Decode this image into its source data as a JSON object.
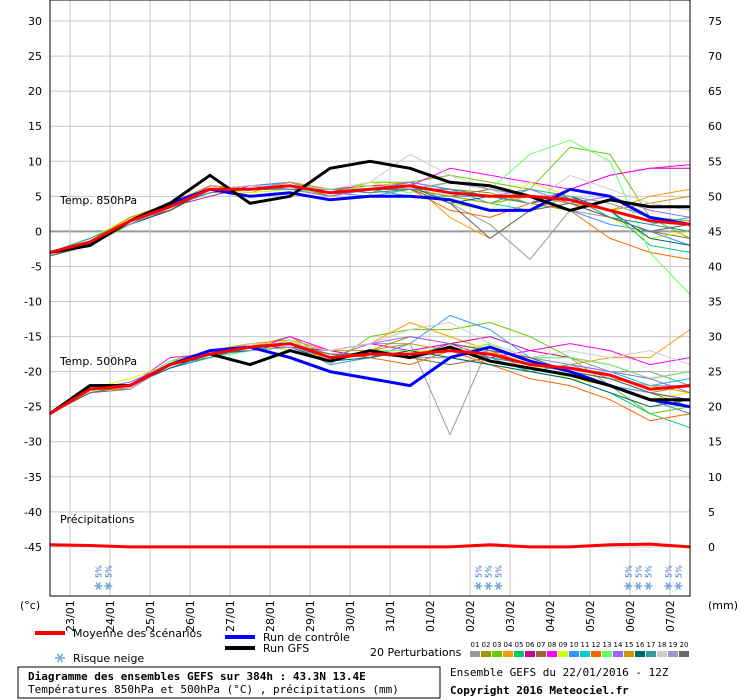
{
  "chart_data": {
    "type": "line",
    "title": "Diagramme des ensembles GEFS sur 384h : 43.3N 13.4E",
    "subtitle": "Températures 850hPa et 500hPa (°C) , précipitations (mm)",
    "run_info": "Ensemble GEFS du 22/01/2016 - 12Z",
    "copyright": "Copyright 2016 Meteociel.fr",
    "annotations": [
      "Temp. 850hPa",
      "Temp. 500hPa",
      "Précipitations"
    ],
    "y_unit": "(°c)",
    "y2_unit": "(mm)",
    "perturbations_label": "20 Perturbations",
    "snow_risk": {
      "label": "Risque neige",
      "marks": [
        {
          "x": 29,
          "label": "5%"
        },
        {
          "x": 35,
          "label": "5%"
        },
        {
          "x": 257,
          "label": "5%"
        },
        {
          "x": 263,
          "label": "5%"
        },
        {
          "x": 269,
          "label": "5%"
        },
        {
          "x": 347,
          "label": "5%"
        },
        {
          "x": 353,
          "label": "5%"
        },
        {
          "x": 359,
          "label": "5%"
        },
        {
          "x": 371,
          "label": "5%"
        },
        {
          "x": 377,
          "label": "5%"
        }
      ]
    },
    "x": [
      0,
      24,
      48,
      72,
      96,
      120,
      144,
      168,
      192,
      216,
      240,
      264,
      288,
      312,
      336,
      360,
      384
    ],
    "xlim": [
      0,
      384
    ],
    "xticks": [
      {
        "value": 12,
        "label": "23/01"
      },
      {
        "value": 36,
        "label": "24/01"
      },
      {
        "value": 60,
        "label": "25/01"
      },
      {
        "value": 84,
        "label": "26/01"
      },
      {
        "value": 108,
        "label": "27/01"
      },
      {
        "value": 132,
        "label": "28/01"
      },
      {
        "value": 156,
        "label": "29/01"
      },
      {
        "value": 180,
        "label": "30/01"
      },
      {
        "value": 204,
        "label": "31/01"
      },
      {
        "value": 228,
        "label": "01/02"
      },
      {
        "value": 252,
        "label": "02/02"
      },
      {
        "value": 276,
        "label": "03/02"
      },
      {
        "value": 300,
        "label": "04/02"
      },
      {
        "value": 324,
        "label": "05/02"
      },
      {
        "value": 348,
        "label": "06/02"
      },
      {
        "value": 372,
        "label": "07/02"
      }
    ],
    "ylim": [
      -52,
      33
    ],
    "yticks": [
      -45,
      -40,
      -35,
      -30,
      -25,
      -20,
      -15,
      -10,
      -5,
      0,
      5,
      10,
      15,
      20,
      25,
      30
    ],
    "y2lim": [
      -7,
      78
    ],
    "y2ticks": [
      0,
      5,
      10,
      15,
      20,
      25,
      30,
      35,
      40,
      45,
      50,
      55,
      60,
      65,
      70,
      75
    ],
    "grid": true,
    "series": [
      {
        "name": "01",
        "color": "#999999",
        "values": [
          -3,
          -1.5,
          1,
          3,
          6,
          6.5,
          7,
          6,
          5.5,
          7,
          4,
          1,
          -4,
          3,
          2,
          0,
          1
        ],
        "values_500": [
          -26,
          -22.5,
          -22,
          -19,
          -17.5,
          -16,
          -16,
          -17,
          -16,
          -16,
          -29,
          -16,
          -18,
          -18,
          -20,
          -20,
          -22
        ]
      },
      {
        "name": "02",
        "color": "#999900",
        "values": [
          -3,
          -1,
          1.5,
          3.5,
          5.5,
          6,
          6.5,
          5,
          6,
          6,
          6,
          5.5,
          4,
          5,
          4,
          2,
          1.5
        ],
        "values_500": [
          -26,
          -22,
          -22.5,
          -19,
          -18,
          -16.5,
          -15,
          -18,
          -17,
          -15,
          -16,
          -17,
          -19,
          -20,
          -21,
          -23,
          -22
        ]
      },
      {
        "name": "03",
        "color": "#66cc00",
        "values": [
          -3.5,
          -2,
          1,
          4,
          6.5,
          6,
          6,
          5.5,
          7,
          7,
          8,
          7,
          6,
          12,
          11,
          2,
          -1
        ],
        "values_500": [
          -26,
          -23,
          -22,
          -18.5,
          -17,
          -17,
          -16,
          -19,
          -15,
          -14,
          -14,
          -13,
          -15,
          -18,
          -22,
          -26,
          -25
        ]
      },
      {
        "name": "04",
        "color": "#ff9900",
        "values": [
          -3,
          -1.5,
          2,
          3,
          6,
          5.5,
          7,
          6,
          6.5,
          7,
          2,
          -1,
          3,
          4,
          3,
          5,
          6
        ],
        "values_500": [
          -26,
          -22.5,
          -21.5,
          -19,
          -17,
          -16,
          -15.5,
          -17,
          -16,
          -13,
          -15,
          -17,
          -20,
          -19,
          -18,
          -18,
          -14
        ]
      },
      {
        "name": "05",
        "color": "#00cc66",
        "values": [
          -3,
          -1,
          1.5,
          4,
          6,
          6,
          6,
          5,
          6,
          5,
          5,
          4,
          6,
          5,
          3,
          -2,
          -3
        ],
        "values_500": [
          -26,
          -22,
          -22,
          -19.5,
          -18,
          -17,
          -16,
          -18,
          -17,
          -18,
          -18,
          -19,
          -20,
          -21,
          -23,
          -26,
          -28
        ]
      },
      {
        "name": "06",
        "color": "#cc0099",
        "values": [
          -3,
          -1.5,
          1,
          3.5,
          5,
          6.5,
          7,
          5.5,
          6,
          7,
          6,
          5,
          4,
          6,
          8,
          9,
          9
        ],
        "values_500": [
          -26,
          -22.5,
          -22,
          -19,
          -17.5,
          -16.5,
          -16.5,
          -17,
          -18,
          -17,
          -16,
          -15,
          -17,
          -18,
          -19,
          -21,
          -20
        ]
      },
      {
        "name": "07",
        "color": "#996633",
        "values": [
          -3.5,
          -2,
          1.5,
          3.5,
          6,
          6,
          6.5,
          6,
          5.5,
          6,
          5,
          6,
          5,
          4,
          2,
          0,
          -1
        ],
        "values_500": [
          -26,
          -23,
          -22.5,
          -19,
          -18,
          -16,
          -16,
          -18.5,
          -17,
          -18,
          -19,
          -18,
          -19,
          -20,
          -21,
          -23,
          -25
        ]
      },
      {
        "name": "08",
        "color": "#ff00ff",
        "values": [
          -3,
          -1.5,
          1.5,
          3,
          6.5,
          6,
          6,
          6,
          6.5,
          6.5,
          9,
          8,
          7,
          6,
          8,
          9,
          9.5
        ],
        "values_500": [
          -26,
          -22,
          -22,
          -18,
          -17.5,
          -17,
          -15,
          -17,
          -16,
          -17,
          -16,
          -18,
          -17,
          -16,
          -17,
          -19,
          -18
        ]
      },
      {
        "name": "09",
        "color": "#ccff00",
        "values": [
          -3,
          -1,
          2,
          4,
          6,
          5.5,
          6,
          5,
          7,
          6,
          4,
          3,
          7,
          5,
          2,
          -1,
          0
        ],
        "values_500": [
          -26,
          -22.5,
          -21,
          -19,
          -17,
          -16,
          -17,
          -18,
          -17,
          -17,
          -17,
          -16,
          -19,
          -21,
          -22,
          -24,
          -23
        ]
      },
      {
        "name": "10",
        "color": "#3399ff",
        "values": [
          -3,
          -1.5,
          1,
          3.5,
          6,
          6.5,
          7,
          5.5,
          5,
          6,
          5,
          5,
          4,
          3,
          1,
          0,
          -2
        ],
        "values_500": [
          -26,
          -22,
          -22,
          -19.5,
          -18,
          -16.5,
          -16,
          -19,
          -18,
          -16,
          -12,
          -14,
          -18,
          -20,
          -22,
          -23,
          -24
        ]
      },
      {
        "name": "11",
        "color": "#00cccc",
        "values": [
          -3,
          -2,
          1.5,
          4,
          5.5,
          6,
          6.5,
          6,
          6,
          7,
          6,
          4,
          3,
          5,
          2,
          1,
          2
        ],
        "values_500": [
          -26,
          -23,
          -22,
          -19,
          -17,
          -17,
          -16.5,
          -18,
          -17.5,
          -18,
          -17,
          -18,
          -20,
          -19,
          -20,
          -22,
          -21
        ]
      },
      {
        "name": "12",
        "color": "#ff6600",
        "values": [
          -3.5,
          -1.5,
          1,
          3,
          6,
          6,
          7,
          5,
          6,
          6,
          3,
          2,
          4,
          3,
          -1,
          -3,
          -4
        ],
        "values_500": [
          -26,
          -22.5,
          -22.5,
          -19,
          -17.5,
          -16,
          -16,
          -17.5,
          -18,
          -19,
          -17,
          -19,
          -21,
          -22,
          -24,
          -27,
          -26
        ]
      },
      {
        "name": "13",
        "color": "#66ff66",
        "values": [
          -3,
          -1,
          1.5,
          3.5,
          6,
          6,
          6,
          5.5,
          6.5,
          5.5,
          7,
          6,
          11,
          13,
          10,
          -3,
          -9
        ],
        "values_500": [
          -26,
          -22,
          -22,
          -18.5,
          -18,
          -17,
          -15.5,
          -18,
          -17,
          -17,
          -18,
          -16,
          -18,
          -18,
          -19,
          -21,
          -20
        ]
      },
      {
        "name": "14",
        "color": "#9966ff",
        "values": [
          -3,
          -1.5,
          1.5,
          3.5,
          6,
          6.5,
          6,
          5,
          6,
          7,
          6,
          5,
          6,
          4,
          5,
          3,
          2
        ],
        "values_500": [
          -26,
          -22.5,
          -21.5,
          -19,
          -17.5,
          -16.5,
          -16,
          -18,
          -16,
          -15,
          -16,
          -17,
          -18,
          -19,
          -20,
          -21,
          -23
        ]
      },
      {
        "name": "15",
        "color": "#cc9900",
        "values": [
          -3,
          -1.5,
          2,
          4,
          6.5,
          6,
          7,
          6,
          6,
          6,
          5,
          4,
          5,
          4,
          3,
          4,
          5
        ],
        "values_500": [
          -26,
          -23,
          -22,
          -19,
          -17,
          -16,
          -16,
          -17,
          -17,
          -16,
          -17,
          -18,
          -19,
          -20,
          -21,
          -22,
          -23
        ]
      },
      {
        "name": "16",
        "color": "#006666",
        "values": [
          -3,
          -1.5,
          1,
          3,
          6,
          6,
          6.5,
          5.5,
          6,
          6.5,
          4,
          5,
          4,
          5,
          3,
          -1,
          -2
        ],
        "values_500": [
          -26,
          -22,
          -22,
          -19.5,
          -17.5,
          -17,
          -16.5,
          -18.5,
          -18,
          -17,
          -18,
          -19,
          -20,
          -21,
          -23,
          -25,
          -24
        ]
      },
      {
        "name": "17",
        "color": "#339999",
        "values": [
          -3,
          -1,
          1.5,
          3.5,
          5.5,
          6,
          6,
          6,
          5.5,
          6,
          6,
          5,
          4,
          5,
          2,
          1,
          0
        ],
        "values_500": [
          -26,
          -22.5,
          -22,
          -19,
          -18,
          -16.5,
          -16,
          -18,
          -17,
          -18,
          -17,
          -18,
          -19,
          -20,
          -22,
          -24,
          -26
        ]
      },
      {
        "name": "18",
        "color": "#cccccc",
        "values": [
          -3,
          -1.5,
          1.5,
          4,
          6,
          6.5,
          6.5,
          6,
          7,
          11,
          8,
          6,
          4,
          8,
          6,
          4,
          3
        ],
        "values_500": [
          -26,
          -22.5,
          -22,
          -19,
          -17.5,
          -16,
          -16,
          -17,
          -16,
          -14,
          -13,
          -16,
          -18,
          -17,
          -18,
          -17,
          -19
        ]
      },
      {
        "name": "19",
        "color": "#9999cc",
        "values": [
          -3,
          -1.5,
          1,
          3.5,
          6,
          6,
          7,
          5.5,
          6,
          6,
          7,
          6,
          5,
          5,
          4,
          2,
          1
        ],
        "values_500": [
          -26,
          -22,
          -22.5,
          -19,
          -17,
          -17,
          -16.5,
          -18,
          -17,
          -18,
          -18,
          -17,
          -18,
          -19,
          -21,
          -22,
          -22
        ]
      },
      {
        "name": "20",
        "color": "#666666",
        "values": [
          -3.5,
          -2,
          1.5,
          3.5,
          6,
          6,
          6.5,
          5.5,
          6,
          6,
          4,
          -1,
          3,
          4,
          2,
          0,
          1
        ],
        "values_500": [
          -26,
          -23,
          -22,
          -19,
          -17.5,
          -16.5,
          -16,
          -17.5,
          -17.5,
          -18,
          -16,
          -17,
          -18,
          -20,
          -21,
          -23,
          -24
        ]
      },
      {
        "name": "Run de contrôle",
        "color": "#0000ff",
        "values": [
          -3,
          -2,
          1.5,
          4,
          6,
          5,
          5.5,
          4.5,
          5,
          5,
          4.5,
          3,
          3,
          6,
          5,
          2,
          1
        ],
        "values_500": [
          -26,
          -22,
          -22,
          -19,
          -17,
          -16.5,
          -18,
          -20,
          -21,
          -22,
          -18,
          -16.5,
          -18.5,
          -20,
          -22,
          -24,
          -25
        ]
      },
      {
        "name": "Run GFS",
        "color": "#000000",
        "values": [
          -3,
          -2,
          1.5,
          4,
          8,
          4,
          5,
          9,
          10,
          9,
          7,
          6.5,
          5,
          3,
          4.5,
          3.5,
          3.5
        ],
        "values_500": [
          -26,
          -22,
          -22,
          -19,
          -17.5,
          -19,
          -17,
          -18.5,
          -17,
          -18,
          -16.5,
          -18.5,
          -19.5,
          -20.5,
          -22,
          -24,
          -24
        ]
      },
      {
        "name": "Moyenne des scénarios",
        "color": "#ff0000",
        "values": [
          -3,
          -1.5,
          1.5,
          3.5,
          6,
          6,
          6.5,
          5.5,
          6,
          6.5,
          5.5,
          5,
          5,
          4.5,
          3,
          1.5,
          1
        ],
        "values_500": [
          -26,
          -22.5,
          -22,
          -19,
          -17.5,
          -16.5,
          -16,
          -18,
          -17.5,
          -17.5,
          -17,
          -17.5,
          -19,
          -19.5,
          -20.5,
          -22.5,
          -22
        ],
        "values_precip": [
          0.3,
          0.2,
          0,
          0,
          0,
          0,
          0,
          0,
          0,
          0,
          0,
          0.3,
          0,
          0,
          0.3,
          0.4,
          0
        ],
        "axis_precip": "y2"
      }
    ]
  }
}
